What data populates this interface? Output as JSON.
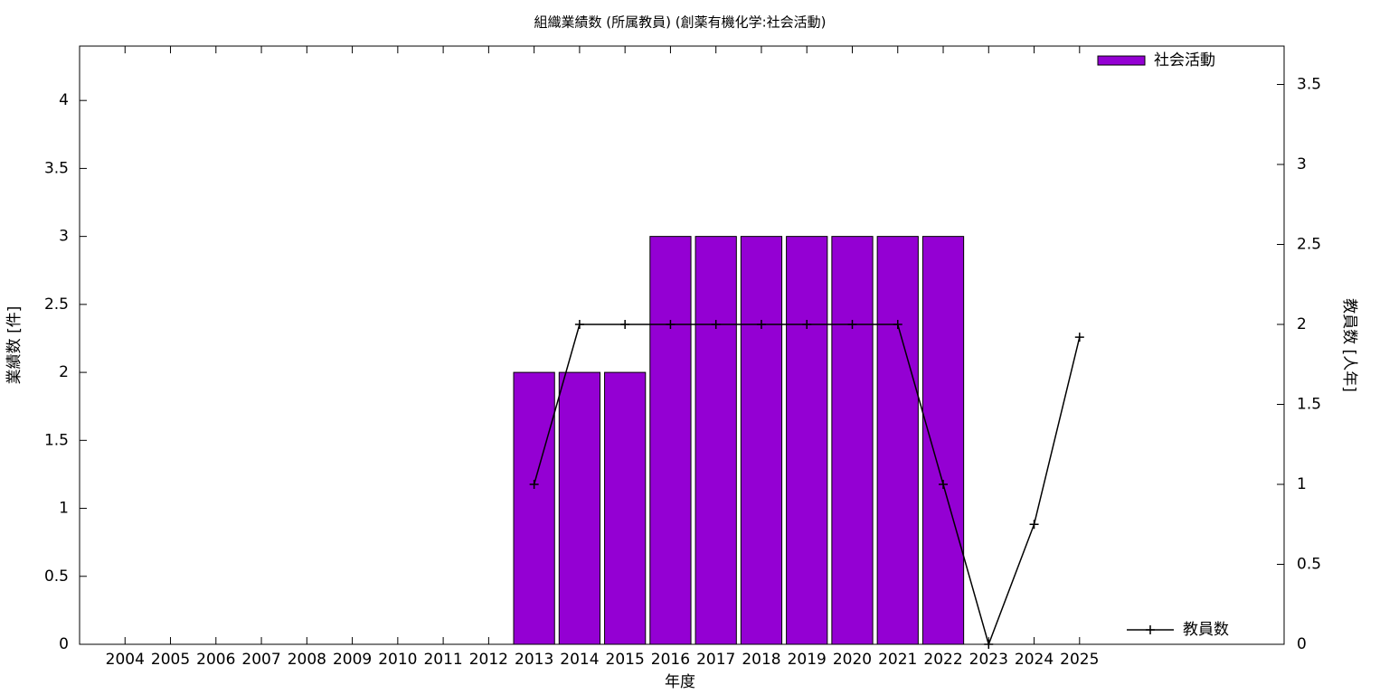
{
  "chart_data": {
    "type": "bar",
    "title": "組織業績数 (所属教員) (創薬有機化学:社会活動)",
    "x_label": "年度",
    "y_label": "業績数 [件]",
    "y2_label": "教員数 [人年]",
    "categories": [
      "2004",
      "2005",
      "2006",
      "2007",
      "2008",
      "2009",
      "2010",
      "2011",
      "2012",
      "2013",
      "2014",
      "2015",
      "2016",
      "2017",
      "2018",
      "2019",
      "2020",
      "2021",
      "2022",
      "2023",
      "2024",
      "2025"
    ],
    "ylim": [
      0,
      4.4
    ],
    "yticks": [
      0,
      0.5,
      1,
      1.5,
      2,
      2.5,
      3,
      3.5,
      4
    ],
    "y2lim": [
      0,
      3.74
    ],
    "y2ticks": [
      0,
      0.5,
      1,
      1.5,
      2,
      2.5,
      3,
      3.5
    ],
    "series": [
      {
        "name": "社会活動",
        "type": "bar",
        "color": "#9400d3",
        "values": [
          0,
          0,
          0,
          0,
          0,
          0,
          0,
          0,
          0,
          2,
          2,
          2,
          3,
          3,
          3,
          3,
          3,
          3,
          3,
          0,
          0,
          0
        ]
      },
      {
        "name": "教員数",
        "type": "line",
        "axis": "y2",
        "color": "#000000",
        "values": [
          null,
          null,
          null,
          null,
          null,
          null,
          null,
          null,
          null,
          1,
          2,
          2,
          2,
          2,
          2,
          2,
          2,
          2,
          1,
          0,
          0.75,
          1.92
        ]
      }
    ]
  }
}
